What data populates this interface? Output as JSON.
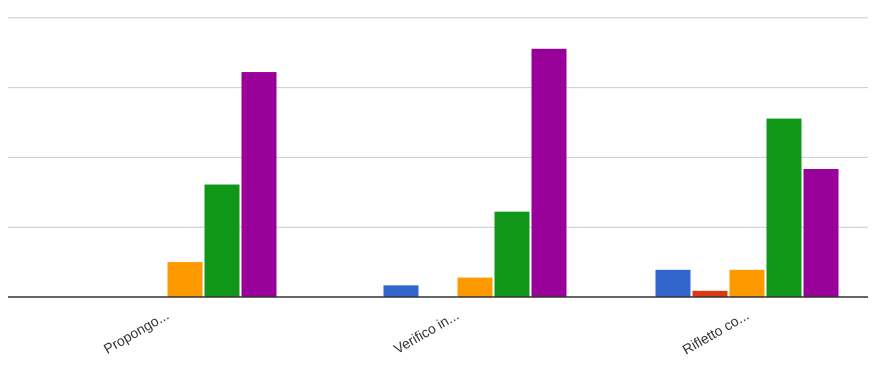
{
  "chart_data": {
    "type": "bar",
    "categories": [
      "Propongo...",
      "Verifico in...",
      "Rifletto co..."
    ],
    "series": [
      {
        "color": "#3366cc",
        "values": [
          0,
          1.5,
          3.5
        ]
      },
      {
        "color": "#dc3912",
        "values": [
          0,
          0,
          0.8
        ]
      },
      {
        "color": "#ff9900",
        "values": [
          4.5,
          2.5,
          3.5
        ]
      },
      {
        "color": "#109618",
        "values": [
          14.5,
          11.0,
          23.0
        ]
      },
      {
        "color": "#990099",
        "values": [
          29.0,
          32.0,
          16.5
        ]
      }
    ],
    "ylim": [
      0,
      37
    ],
    "gridlines": [
      0,
      9,
      18,
      27,
      36
    ],
    "grid": true,
    "legend": "none"
  }
}
